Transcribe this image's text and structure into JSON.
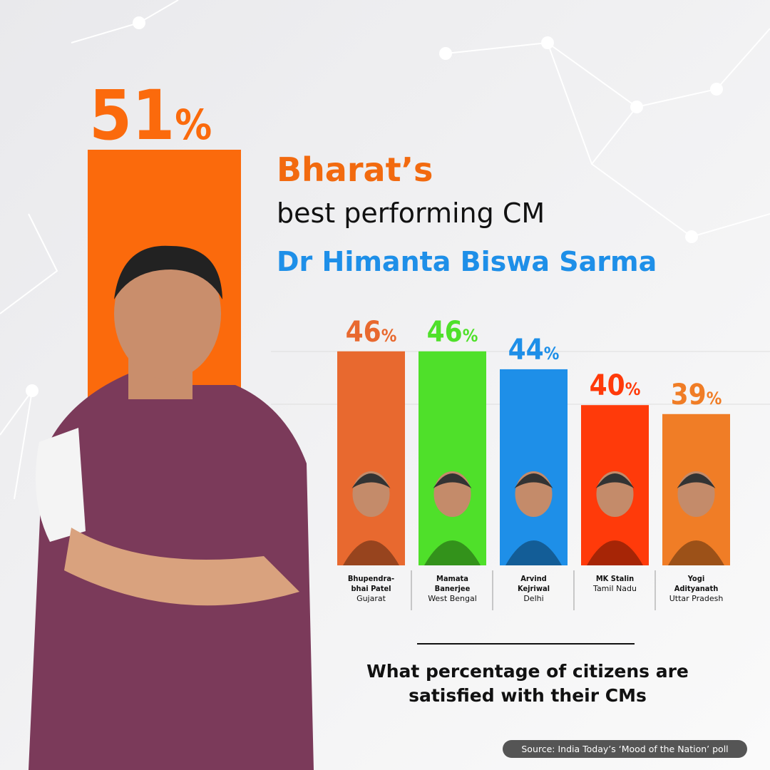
{
  "chart_data": {
    "type": "bar",
    "featured": {
      "value": 51,
      "value_label": "51%",
      "color": "#fb6a0c"
    },
    "title_line1": "Bharat’s",
    "title_line2": "best performing CM",
    "title_name": "Dr Himanta Biswa Sarma",
    "categories": [
      "Bhupendra-bhai Patel",
      "Mamata Banerjee",
      "Arvind Kejriwal",
      "MK Stalin",
      "Yogi Adityanath"
    ],
    "states": [
      "Gujarat",
      "West Bengal",
      "Delhi",
      "Tamil Nadu",
      "Uttar Pradesh"
    ],
    "values": [
      46,
      46,
      44,
      40,
      39
    ],
    "value_labels": [
      "46%",
      "46%",
      "44%",
      "40%",
      "39%"
    ],
    "colors": [
      "#e8692f",
      "#4fe02a",
      "#1e8fe8",
      "#ff3a0a",
      "#f07d26"
    ],
    "caption": "What percentage of citizens are satisfied with their CMs",
    "source": "Source: India Today’s ‘Mood of the Nation’ poll"
  }
}
